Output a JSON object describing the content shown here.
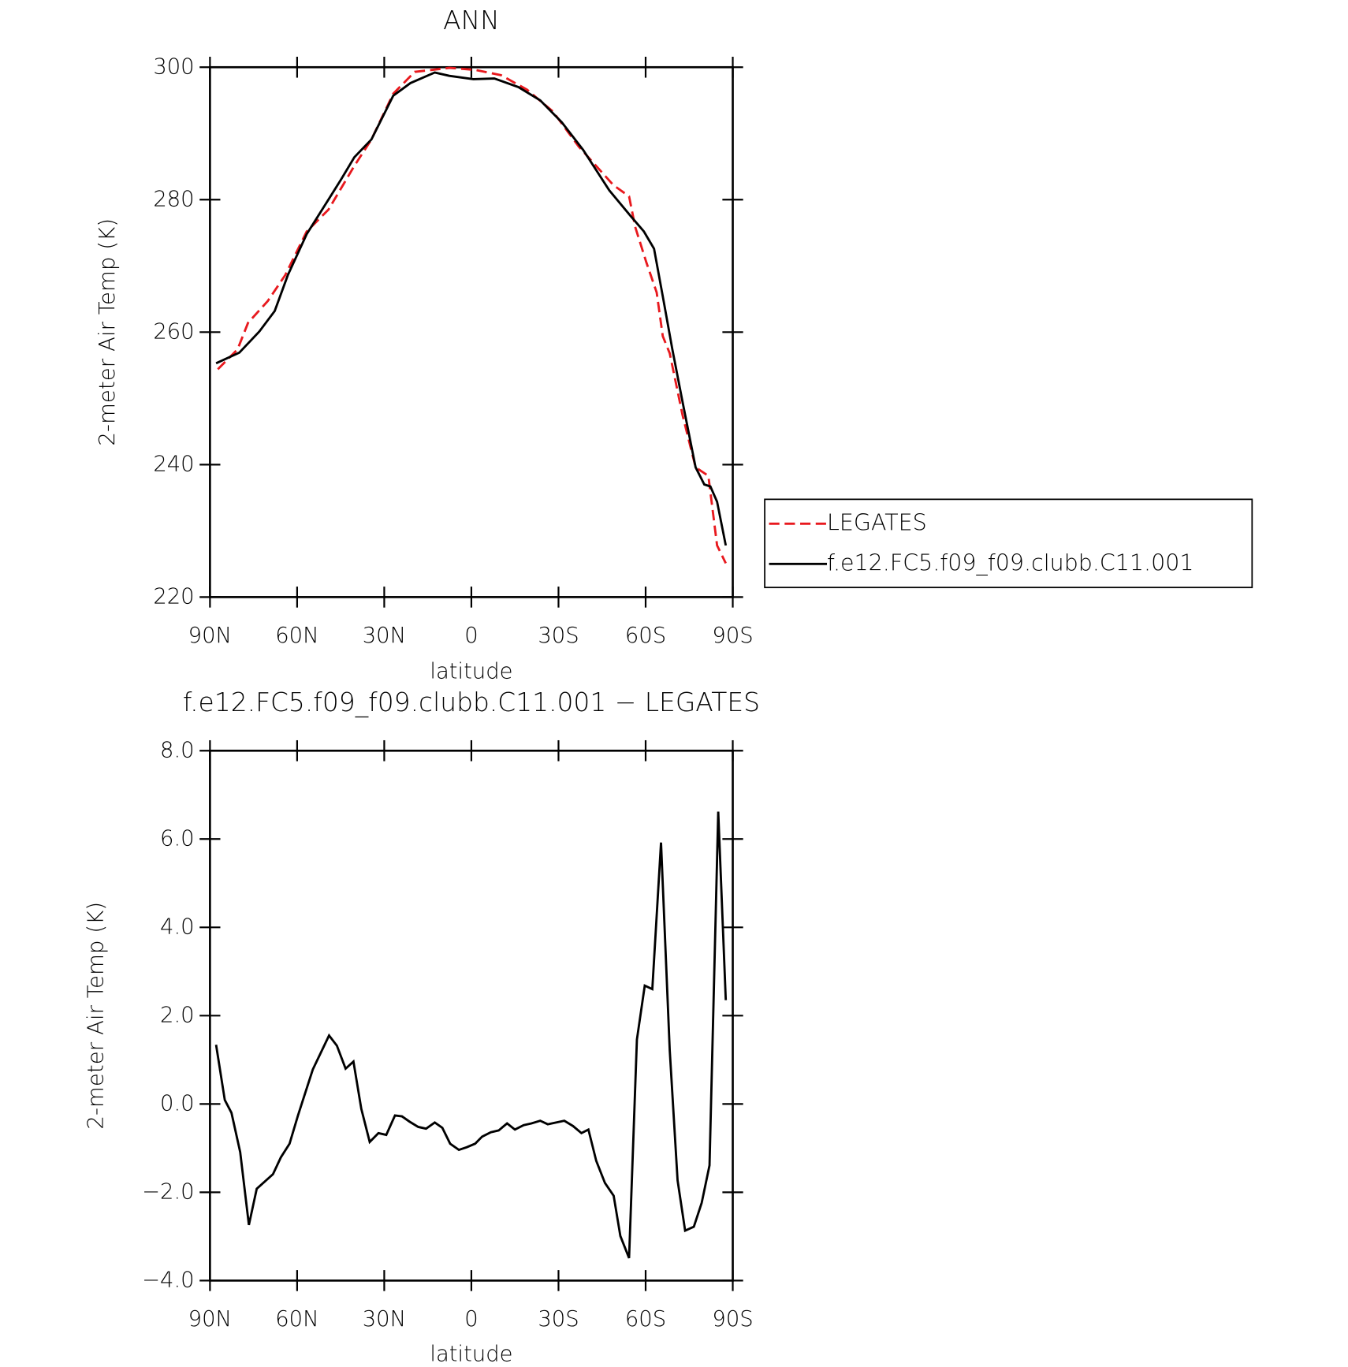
{
  "chart_data": [
    {
      "type": "line",
      "title": "ANN",
      "xlabel": "latitude",
      "ylabel": "2-meter Air Temp (K)",
      "xlim": [
        90,
        -90
      ],
      "xticks": [
        {
          "value": 90,
          "label": "90N"
        },
        {
          "value": 60,
          "label": "60N"
        },
        {
          "value": 30,
          "label": "30N"
        },
        0,
        {
          "value": -30,
          "label": "30S"
        },
        {
          "value": -60,
          "label": "60S"
        },
        {
          "value": -90,
          "label": "90S"
        }
      ],
      "ylim": [
        220,
        300
      ],
      "yticks": [
        220,
        240,
        260,
        280,
        300
      ],
      "legend": "right",
      "series": [
        {
          "name": "LEGATES",
          "color": "#e8191e",
          "style": "dashed",
          "x": [
            87.3,
            80.5,
            76.9,
            70.1,
            64.1,
            56.7,
            49.2,
            40.3,
            34.4,
            26.9,
            19.5,
            7.6,
            -1.3,
            -10.2,
            -19.2,
            -28.1,
            -37,
            -48.9,
            -54.3,
            -56.4,
            -60.2,
            -63.8,
            -65.9,
            -68.3,
            -72.7,
            -77.2,
            -81.6,
            -84.6,
            -87.6
          ],
          "values": [
            254.4,
            257.4,
            261.4,
            264.7,
            268.6,
            275.2,
            278.5,
            285.1,
            289.1,
            296,
            299.3,
            299.9,
            299.6,
            298.8,
            296.6,
            293.3,
            288,
            282.2,
            280.5,
            275.9,
            270.6,
            266,
            259.4,
            256.8,
            247.5,
            239.6,
            238.3,
            227.8,
            225.1
          ]
        },
        {
          "name": "f.e12.FC5.f09_f09.clubb.C11.001",
          "color": "#000000",
          "style": "solid",
          "x": [
            87.9,
            79.9,
            73,
            67.7,
            63.2,
            56.7,
            49.8,
            44.8,
            40.3,
            34.4,
            26.9,
            21,
            12.6,
            7.6,
            -0.7,
            -7.9,
            -16.2,
            -23.7,
            -31.1,
            -38.5,
            -47.5,
            -54.9,
            -59.4,
            -62.9,
            -66.2,
            -69.2,
            -72.7,
            -77.2,
            -80.2,
            -82.3,
            -84.6,
            -87.6
          ],
          "values": [
            255.3,
            256.9,
            260.1,
            263.2,
            268.6,
            274.8,
            279.6,
            283.1,
            286.4,
            289.1,
            295.7,
            297.6,
            299.2,
            298.7,
            298.2,
            298.3,
            297,
            295,
            291.7,
            287.5,
            281.4,
            277.5,
            275.2,
            272.6,
            264.7,
            257.4,
            249.5,
            239.6,
            237,
            236.7,
            234.4,
            227.8
          ]
        }
      ]
    },
    {
      "type": "line",
      "title": "f.e12.FC5.f09_f09.clubb.C11.001 − LEGATES",
      "xlabel": "latitude",
      "ylabel": "2-meter Air Temp (K)",
      "xlim": [
        90,
        -90
      ],
      "xticks": [
        {
          "value": 90,
          "label": "90N"
        },
        {
          "value": 60,
          "label": "60N"
        },
        {
          "value": 30,
          "label": "30N"
        },
        0,
        {
          "value": -30,
          "label": "30S"
        },
        {
          "value": -60,
          "label": "60S"
        },
        {
          "value": -90,
          "label": "90S"
        }
      ],
      "ylim": [
        -4,
        8
      ],
      "yticks": [
        {
          "value": -4,
          "label": "−4.0"
        },
        {
          "value": -2,
          "label": "−2.0"
        },
        {
          "value": 0,
          "label": "0.0"
        },
        {
          "value": 2,
          "label": "2.0"
        },
        {
          "value": 4,
          "label": "4.0"
        },
        {
          "value": 6,
          "label": "6.0"
        },
        {
          "value": 8,
          "label": "8.0"
        }
      ],
      "series": [
        {
          "color": "#000000",
          "style": "solid",
          "x": [
            87.9,
            84.9,
            82.6,
            79.6,
            76.6,
            73.9,
            68.3,
            65.6,
            62.6,
            59.7,
            54.6,
            49,
            46.3,
            43.3,
            40.6,
            37.9,
            35,
            32,
            29.3,
            26.3,
            23.9,
            21.3,
            18.3,
            15.6,
            12.6,
            10,
            7.3,
            4.3,
            1.6,
            -1.3,
            -3.7,
            -6.7,
            -9.4,
            -12.3,
            -15,
            -18,
            -20.7,
            -23.7,
            -26.3,
            -32,
            -35,
            -37.9,
            -40.3,
            -43,
            -46,
            -49,
            -51.3,
            -54.3,
            -57,
            -59.7,
            -62.3,
            -65.3,
            -68.3,
            -71,
            -73.6,
            -76.6,
            -79.3,
            -82,
            -85,
            -87.6
          ],
          "values": [
            1.34,
            0.09,
            -0.2,
            -1.09,
            -2.74,
            -1.92,
            -1.59,
            -1.21,
            -0.9,
            -0.26,
            0.78,
            1.55,
            1.32,
            0.8,
            0.96,
            -0.11,
            -0.86,
            -0.66,
            -0.7,
            -0.26,
            -0.28,
            -0.4,
            -0.52,
            -0.56,
            -0.42,
            -0.54,
            -0.9,
            -1.04,
            -0.98,
            -0.9,
            -0.74,
            -0.64,
            -0.6,
            -0.44,
            -0.58,
            -0.48,
            -0.44,
            -0.38,
            -0.46,
            -0.38,
            -0.5,
            -0.66,
            -0.58,
            -1.29,
            -1.79,
            -2.08,
            -2.99,
            -3.49,
            1.46,
            2.68,
            2.6,
            5.92,
            1.22,
            -1.73,
            -2.87,
            -2.78,
            -2.24,
            -1.39,
            6.62,
            2.35
          ]
        }
      ]
    }
  ]
}
